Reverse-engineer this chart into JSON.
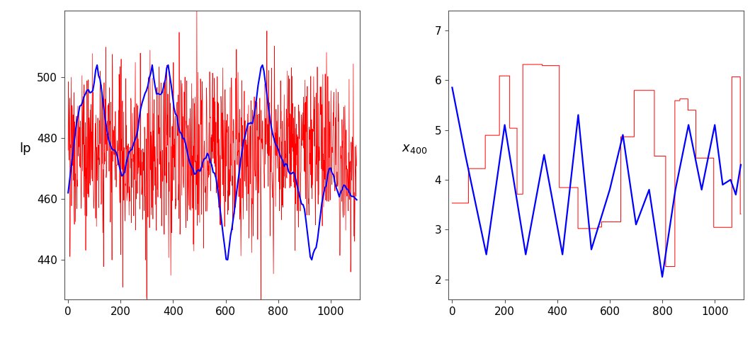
{
  "left_ylabel": "lp",
  "right_ylabel": "x_{400}",
  "left_ylim": [
    427,
    522
  ],
  "right_ylim": [
    1.6,
    7.4
  ],
  "left_yticks": [
    440,
    460,
    480,
    500
  ],
  "right_yticks": [
    2,
    3,
    4,
    5,
    6,
    7
  ],
  "left_xlim": [
    -15,
    1110
  ],
  "right_xlim": [
    -15,
    1110
  ],
  "xticks_left": [
    0,
    200,
    400,
    600,
    800,
    1000
  ],
  "xticks_right": [
    0,
    200,
    400,
    600,
    800,
    1000
  ],
  "n_samples": 1100,
  "red_color": "#FF0000",
  "blue_color": "#0000FF",
  "bg_color": "#FFFFFF"
}
